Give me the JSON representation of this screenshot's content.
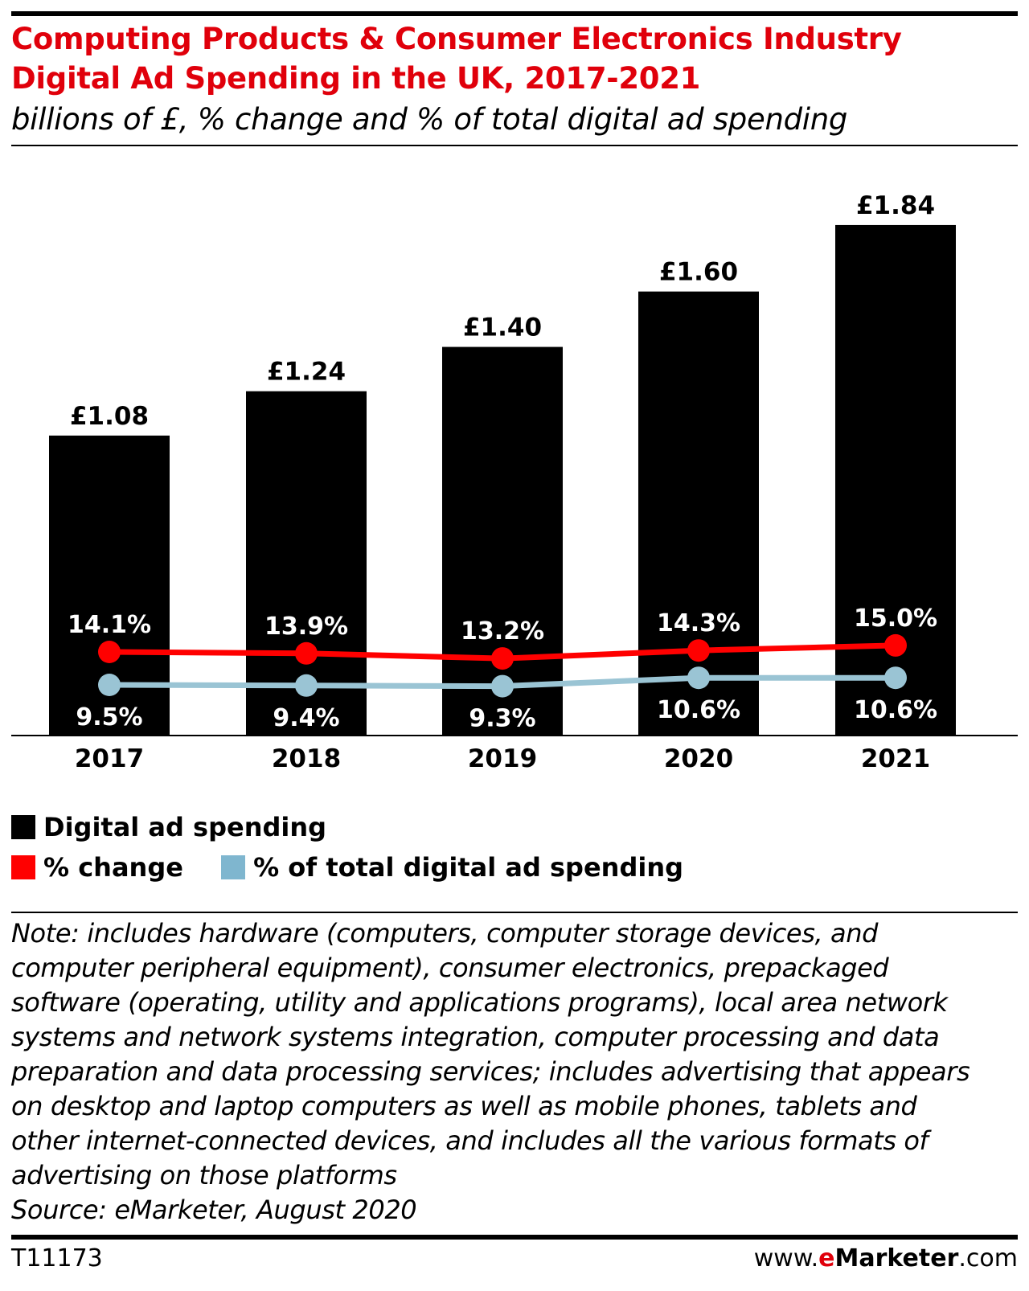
{
  "title_line1": "Computing Products & Consumer Electronics Industry",
  "title_line2": "Digital Ad Spending in the UK, 2017-2021",
  "subtitle": "billions of £, % change and % of total digital ad spending",
  "legend": {
    "bars": "Digital ad spending",
    "change": "% change",
    "share": "% of total digital ad spending"
  },
  "note_lines": [
    "Note: includes hardware (computers, computer storage devices, and",
    "computer peripheral equipment), consumer electronics, prepackaged",
    "software (operating, utility and applications programs), local area network",
    "systems and network systems integration, computer processing and data",
    "preparation and data processing services; includes advertising that appears",
    "on desktop and laptop computers as well as mobile phones, tablets and",
    "other internet-connected devices, and includes all the various formats of",
    "advertising on those platforms",
    "Source: eMarketer, August 2020"
  ],
  "chart_id": "T11173",
  "website": {
    "prefix": "www.",
    "e": "e",
    "brand": "Marketer",
    "suffix": ".com"
  },
  "colors": {
    "title": "#e0000b",
    "bars": "#000000",
    "change": "#ff0000",
    "share": "#9ac4d4"
  },
  "chart_data": {
    "type": "bar",
    "categories": [
      "2017",
      "2018",
      "2019",
      "2020",
      "2021"
    ],
    "series": [
      {
        "name": "Digital ad spending",
        "type": "bar",
        "values": [
          1.08,
          1.24,
          1.4,
          1.6,
          1.84
        ],
        "labels": [
          "£1.08",
          "£1.24",
          "£1.40",
          "£1.60",
          "£1.84"
        ]
      },
      {
        "name": "% change",
        "type": "line",
        "values": [
          14.1,
          13.9,
          13.2,
          14.3,
          15.0
        ],
        "labels": [
          "14.1%",
          "13.9%",
          "13.2%",
          "14.3%",
          "15.0%"
        ]
      },
      {
        "name": "% of total digital ad spending",
        "type": "line",
        "values": [
          9.5,
          9.4,
          9.3,
          10.6,
          10.6
        ],
        "labels": [
          "9.5%",
          "9.4%",
          "9.3%",
          "10.6%",
          "10.6%"
        ]
      }
    ],
    "grid": false,
    "legend_position": "bottom-left"
  }
}
